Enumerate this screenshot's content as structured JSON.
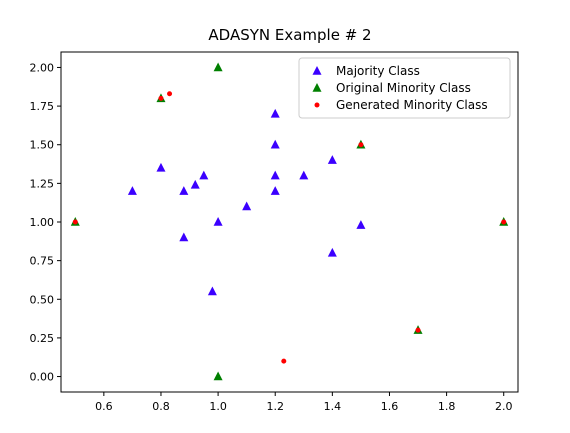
{
  "chart_data": {
    "type": "scatter",
    "title": "ADASYN Example # 2",
    "xlabel": "",
    "ylabel": "",
    "xlim": [
      0.45,
      2.05
    ],
    "ylim": [
      -0.1,
      2.1
    ],
    "xticks": [
      0.6,
      0.8,
      1.0,
      1.2,
      1.4,
      1.6,
      1.8,
      2.0
    ],
    "yticks": [
      0.0,
      0.25,
      0.5,
      0.75,
      1.0,
      1.25,
      1.5,
      1.75,
      2.0
    ],
    "xtick_labels": [
      "0.6",
      "0.8",
      "1.0",
      "1.2",
      "1.4",
      "1.6",
      "1.8",
      "2.0"
    ],
    "ytick_labels": [
      "0.00",
      "0.25",
      "0.50",
      "0.75",
      "1.00",
      "1.25",
      "1.50",
      "1.75",
      "2.00"
    ],
    "grid": false,
    "legend_position": "top-right",
    "series": [
      {
        "name": "Majority Class",
        "marker": "triangle",
        "color": "#3b00ff",
        "points": [
          [
            0.7,
            1.2
          ],
          [
            0.8,
            1.35
          ],
          [
            0.88,
            1.2
          ],
          [
            0.92,
            1.24
          ],
          [
            0.95,
            1.3
          ],
          [
            0.88,
            0.9
          ],
          [
            1.0,
            1.0
          ],
          [
            0.98,
            0.55
          ],
          [
            1.1,
            1.1
          ],
          [
            1.2,
            1.7
          ],
          [
            1.2,
            1.5
          ],
          [
            1.2,
            1.3
          ],
          [
            1.2,
            1.2
          ],
          [
            1.3,
            1.3
          ],
          [
            1.4,
            1.4
          ],
          [
            1.4,
            0.8
          ],
          [
            1.5,
            0.98
          ]
        ]
      },
      {
        "name": "Original Minority Class",
        "marker": "triangle",
        "color": "#008000",
        "points": [
          [
            0.5,
            1.0
          ],
          [
            0.8,
            1.8
          ],
          [
            1.0,
            2.0
          ],
          [
            1.0,
            0.0
          ],
          [
            1.5,
            1.5
          ],
          [
            1.7,
            0.3
          ],
          [
            2.0,
            1.0
          ]
        ]
      },
      {
        "name": "Generated Minority Class",
        "marker": "circle",
        "color": "#ff0000",
        "points": [
          [
            0.5,
            1.0
          ],
          [
            0.8,
            1.8
          ],
          [
            0.83,
            1.83
          ],
          [
            1.23,
            0.1
          ],
          [
            1.5,
            1.5
          ],
          [
            1.7,
            0.3
          ],
          [
            2.0,
            1.0
          ]
        ]
      }
    ]
  }
}
